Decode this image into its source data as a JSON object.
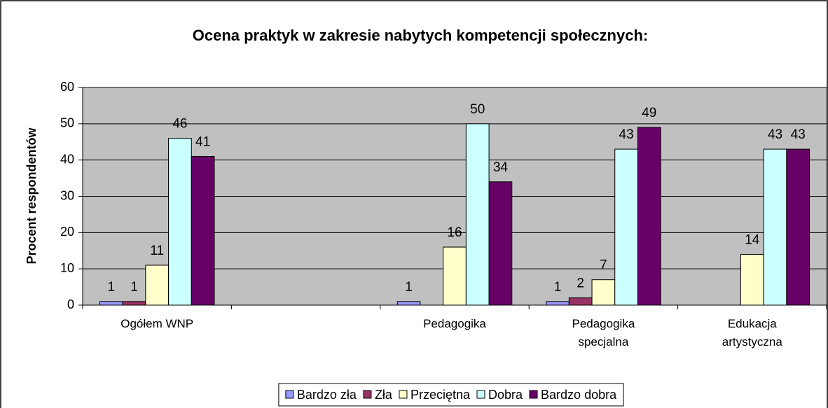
{
  "chart_data": {
    "type": "bar",
    "title": "Ocena praktyk w zakresie nabytych kompetencji społecznych:",
    "y_axis_label": "Procent respondentów",
    "categories": [
      "Ogółem WNP",
      null,
      "Pedagogika",
      "Pedagogika specjalna",
      "Edukacja artystyczna"
    ],
    "series": [
      {
        "name": "Bardzo zła",
        "color": "#9999ff",
        "values": [
          1,
          null,
          1,
          1,
          null
        ]
      },
      {
        "name": "Zła",
        "color": "#993366",
        "values": [
          1,
          null,
          null,
          2,
          null
        ]
      },
      {
        "name": "Przeciętna",
        "color": "#ffffcc",
        "values": [
          11,
          null,
          16,
          7,
          14
        ]
      },
      {
        "name": "Dobra",
        "color": "#ccffff",
        "values": [
          46,
          null,
          50,
          43,
          43
        ]
      },
      {
        "name": "Bardzo dobra",
        "color": "#660066",
        "values": [
          41,
          null,
          34,
          49,
          43
        ]
      }
    ],
    "ylim": [
      0,
      60
    ],
    "yticks": [
      0,
      10,
      20,
      30,
      40,
      50,
      60
    ],
    "grid": true,
    "legend": "bottom"
  }
}
